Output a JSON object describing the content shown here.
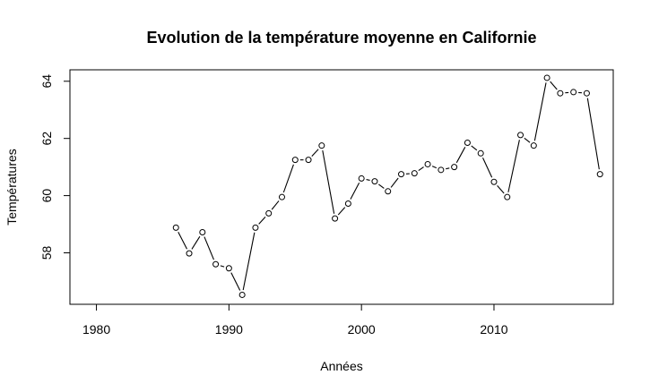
{
  "chart_data": {
    "type": "line",
    "title": "Evolution de la température moyenne en Californie",
    "xlabel": "Années",
    "ylabel": "Températures",
    "xlim": [
      1978,
      2019
    ],
    "ylim": [
      56.2,
      64.4
    ],
    "xticks": [
      1980,
      1990,
      2000,
      2010
    ],
    "yticks": [
      58,
      60,
      62,
      64
    ],
    "grid": false,
    "marker": "open-circle",
    "x": [
      1986,
      1987,
      1988,
      1989,
      1990,
      1991,
      1992,
      1993,
      1994,
      1995,
      1996,
      1997,
      1998,
      1999,
      2000,
      2001,
      2002,
      2003,
      2004,
      2005,
      2006,
      2007,
      2008,
      2009,
      2010,
      2011,
      2012,
      2013,
      2014,
      2015,
      2016,
      2017,
      2018
    ],
    "y": [
      58.88,
      57.98,
      58.72,
      57.6,
      57.46,
      56.53,
      58.88,
      59.38,
      59.95,
      61.25,
      61.25,
      61.75,
      59.2,
      59.72,
      60.6,
      60.5,
      60.15,
      60.75,
      60.78,
      61.1,
      60.9,
      61.0,
      61.85,
      61.48,
      60.48,
      59.95,
      62.12,
      61.75,
      64.12,
      63.58,
      63.62,
      63.58,
      60.75
    ]
  }
}
